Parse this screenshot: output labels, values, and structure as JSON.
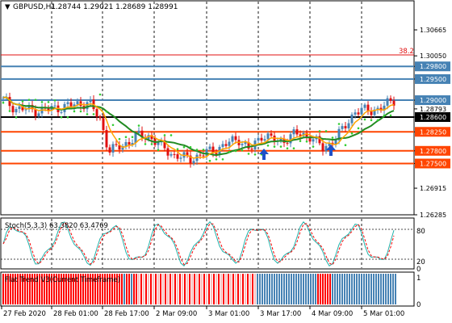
{
  "header": {
    "symbol": "GBPUSD,H1",
    "ohlc": "1.28744 1.29021 1.28689 1.28991"
  },
  "main_panel": {
    "price_labels": [
      "1.30665",
      "1.30050",
      "1.29800",
      "1.29500",
      "1.29000",
      "1.28793",
      "1.28600",
      "1.28250",
      "1.27800",
      "1.27500",
      "1.26915",
      "1.26285"
    ],
    "fib_label": "38.2",
    "levels": {
      "blue": [
        "1.29800",
        "1.29500",
        "1.29000"
      ],
      "black": [
        "1.28600"
      ],
      "orange": [
        "1.28250",
        "1.27800",
        "1.27500"
      ]
    }
  },
  "stoch_panel": {
    "label": "Stoch(5,3,3) 63.3820 63.4769",
    "scale_labels": [
      "80",
      "20",
      "0"
    ]
  },
  "trend_panel": {
    "label": "Flat Trend V3(Current Timeframe)",
    "scale_labels": [
      "1",
      "0"
    ]
  },
  "time_axis": {
    "labels": [
      "27 Feb 2020",
      "28 Feb 01:00",
      "28 Feb 17:00",
      "2 Mar 09:00",
      "3 Mar 01:00",
      "3 Mar 17:00",
      "4 Mar 09:00",
      "5 Mar 01:00"
    ]
  },
  "colors": {
    "background": "#ffffff",
    "grid": "#000000",
    "bull_candle": "#4682b4",
    "bear_candle": "#e01010",
    "ma_fast": "#ffa500",
    "ma_slow": "#228b22",
    "sar": "#32cd32",
    "blue_level": "#4682b4",
    "orange_level": "#ff4500",
    "current_price": "#000000",
    "trend_up": "#4682b4",
    "trend_down": "#ff0000",
    "stoch_main": "#20b2aa",
    "stoch_signal": "#ff0000",
    "arrow": "#1e50c8"
  }
}
